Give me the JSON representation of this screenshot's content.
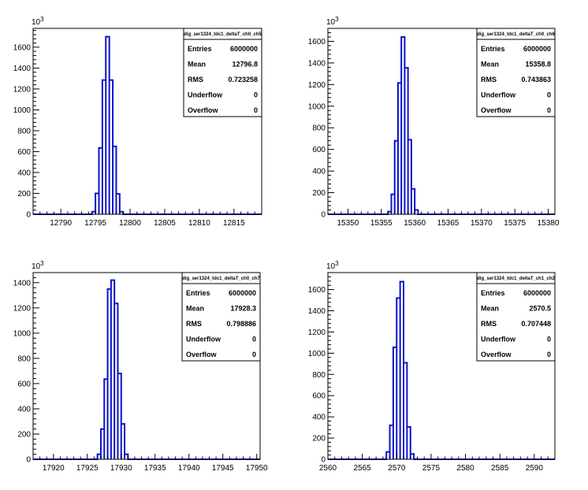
{
  "chart_data": [
    {
      "type": "bar",
      "title": "dig_ser1324_tdc1_deltaT_ch0_ch5",
      "y_exponent": "10³",
      "xlim": [
        12786,
        12819
      ],
      "ylim": [
        0,
        1780
      ],
      "xticks": [
        12790,
        12795,
        12800,
        12805,
        12810,
        12815
      ],
      "yticks": [
        0,
        200,
        400,
        600,
        800,
        1000,
        1200,
        1400,
        1600
      ],
      "bin_width": 0.5,
      "bins": [
        {
          "x": 12794.5,
          "y": 25
        },
        {
          "x": 12795.0,
          "y": 200
        },
        {
          "x": 12795.5,
          "y": 635
        },
        {
          "x": 12796.0,
          "y": 1285
        },
        {
          "x": 12796.5,
          "y": 1700
        },
        {
          "x": 12797.0,
          "y": 1285
        },
        {
          "x": 12797.5,
          "y": 650
        },
        {
          "x": 12798.0,
          "y": 195
        },
        {
          "x": 12798.5,
          "y": 25
        }
      ],
      "stats": [
        {
          "label": "Entries",
          "value": "6000000"
        },
        {
          "label": "Mean",
          "value": "12796.8"
        },
        {
          "label": "RMS",
          "value": "0.723258"
        },
        {
          "label": "Underflow",
          "value": "0"
        },
        {
          "label": "Overflow",
          "value": "0"
        }
      ]
    },
    {
      "type": "bar",
      "title": "dig_ser1324_tdc1_deltaT_ch0_ch6",
      "y_exponent": "10³",
      "xlim": [
        15347,
        15381
      ],
      "ylim": [
        0,
        1720
      ],
      "xticks": [
        15350,
        15355,
        15360,
        15365,
        15370,
        15375,
        15380
      ],
      "yticks": [
        0,
        200,
        400,
        600,
        800,
        1000,
        1200,
        1400,
        1600
      ],
      "bin_width": 0.5,
      "bins": [
        {
          "x": 15356.0,
          "y": 25
        },
        {
          "x": 15356.5,
          "y": 185
        },
        {
          "x": 15357.0,
          "y": 680
        },
        {
          "x": 15357.5,
          "y": 1215
        },
        {
          "x": 15358.0,
          "y": 1640
        },
        {
          "x": 15358.5,
          "y": 1355
        },
        {
          "x": 15359.0,
          "y": 690
        },
        {
          "x": 15359.5,
          "y": 235
        },
        {
          "x": 15360.0,
          "y": 40
        }
      ],
      "stats": [
        {
          "label": "Entries",
          "value": "6000000"
        },
        {
          "label": "Mean",
          "value": "15358.8"
        },
        {
          "label": "RMS",
          "value": "0.743863"
        },
        {
          "label": "Underflow",
          "value": "0"
        },
        {
          "label": "Overflow",
          "value": "0"
        }
      ]
    },
    {
      "type": "bar",
      "title": "dig_ser1324_tdc1_deltaT_ch0_ch7",
      "y_exponent": "10³",
      "xlim": [
        17917,
        17950.5
      ],
      "ylim": [
        0,
        1480
      ],
      "xticks": [
        17920,
        17925,
        17930,
        17935,
        17940,
        17945,
        17950
      ],
      "yticks": [
        0,
        200,
        400,
        600,
        800,
        1000,
        1200,
        1400
      ],
      "bin_width": 0.5,
      "bins": [
        {
          "x": 17926.5,
          "y": 40
        },
        {
          "x": 17927.0,
          "y": 240
        },
        {
          "x": 17927.5,
          "y": 635
        },
        {
          "x": 17928.0,
          "y": 1350
        },
        {
          "x": 17928.5,
          "y": 1420
        },
        {
          "x": 17929.0,
          "y": 1235
        },
        {
          "x": 17929.5,
          "y": 680
        },
        {
          "x": 17930.0,
          "y": 280
        },
        {
          "x": 17930.5,
          "y": 40
        }
      ],
      "stats": [
        {
          "label": "Entries",
          "value": "6000000"
        },
        {
          "label": "Mean",
          "value": "17928.3"
        },
        {
          "label": "RMS",
          "value": "0.798886"
        },
        {
          "label": "Underflow",
          "value": "0"
        },
        {
          "label": "Overflow",
          "value": "0"
        }
      ]
    },
    {
      "type": "bar",
      "title": "dig_ser1324_tdc1_deltaT_ch1_ch2",
      "y_exponent": "10³",
      "xlim": [
        2560,
        2593
      ],
      "ylim": [
        0,
        1760
      ],
      "xticks": [
        2560,
        2565,
        2570,
        2575,
        2580,
        2585,
        2590
      ],
      "yticks": [
        0,
        200,
        400,
        600,
        800,
        1000,
        1200,
        1400,
        1600
      ],
      "bin_width": 0.5,
      "bins": [
        {
          "x": 2568.5,
          "y": 70
        },
        {
          "x": 2569.0,
          "y": 320
        },
        {
          "x": 2569.5,
          "y": 1055
        },
        {
          "x": 2570.0,
          "y": 1520
        },
        {
          "x": 2570.5,
          "y": 1675
        },
        {
          "x": 2571.0,
          "y": 910
        },
        {
          "x": 2571.5,
          "y": 305
        },
        {
          "x": 2572.0,
          "y": 50
        }
      ],
      "stats": [
        {
          "label": "Entries",
          "value": "6000000"
        },
        {
          "label": "Mean",
          "value": "2570.5"
        },
        {
          "label": "RMS",
          "value": "0.707448"
        },
        {
          "label": "Underflow",
          "value": "0"
        },
        {
          "label": "Overflow",
          "value": "0"
        }
      ]
    }
  ]
}
